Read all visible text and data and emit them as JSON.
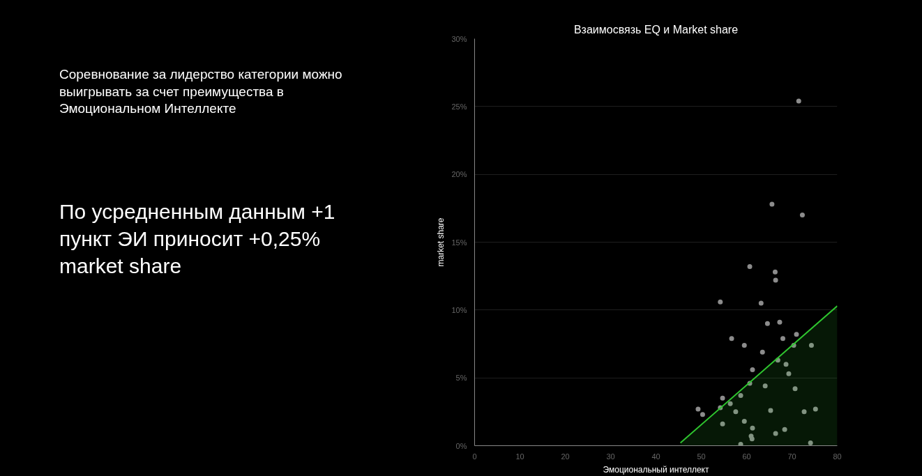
{
  "chart_data": {
    "type": "scatter",
    "title": "Взаимосвязь EQ и Market share",
    "xlabel": "Эмоциональный интеллект",
    "ylabel": "market share",
    "annotations": [
      "Соревнование за лидерство категории можно выигрывать за счет преимущества в Эмоциональном Интеллекте",
      "По усредненным данным +1 пункт ЭИ приносит +0,25% market share"
    ],
    "xlim": [
      0,
      80
    ],
    "ylim": [
      0,
      30
    ],
    "xticks": [
      0,
      10,
      20,
      30,
      40,
      50,
      60,
      70,
      80
    ],
    "yticks": [
      {
        "value": 0,
        "label": "0%"
      },
      {
        "value": 5,
        "label": "5%"
      },
      {
        "value": 10,
        "label": "10%"
      },
      {
        "value": 15,
        "label": "15%"
      },
      {
        "value": 20,
        "label": "20%"
      },
      {
        "value": 25,
        "label": "25%"
      },
      {
        "value": 30,
        "label": "30%"
      }
    ],
    "grid": "y",
    "marker": "circle",
    "series": [
      {
        "color": "#8c8c8c",
        "x": [
          71.5,
          65.6,
          72.3,
          60.7,
          66.3,
          66.4,
          54.2,
          63.2,
          67.3,
          64.6,
          56.7,
          68.0,
          71.0,
          59.5,
          70.4,
          74.3,
          63.5,
          66.9,
          68.7,
          69.3,
          61.3,
          60.7,
          64.1,
          70.7,
          54.7,
          58.7,
          56.4,
          54.2,
          49.3,
          50.3,
          57.6,
          65.3,
          72.7,
          75.2,
          54.7,
          59.5,
          61.3,
          61.0,
          61.2,
          66.4,
          68.4,
          58.7,
          74.1
        ],
        "values": [
          25.4,
          17.8,
          17.0,
          13.2,
          12.8,
          12.2,
          10.6,
          10.5,
          9.1,
          9.0,
          7.9,
          7.9,
          8.2,
          7.4,
          7.4,
          7.4,
          6.9,
          6.3,
          6.0,
          5.3,
          5.6,
          4.6,
          4.4,
          4.2,
          3.5,
          3.7,
          3.1,
          2.8,
          2.7,
          2.3,
          2.5,
          2.6,
          2.5,
          2.7,
          1.6,
          1.8,
          1.3,
          0.7,
          0.5,
          0.9,
          1.2,
          0.1,
          0.2
        ]
      },
      {
        "type": "area",
        "marker": "none",
        "color": "#2fc62f",
        "x": [
          45.4,
          80
        ],
        "values": [
          0.2,
          10.3
        ]
      }
    ]
  }
}
